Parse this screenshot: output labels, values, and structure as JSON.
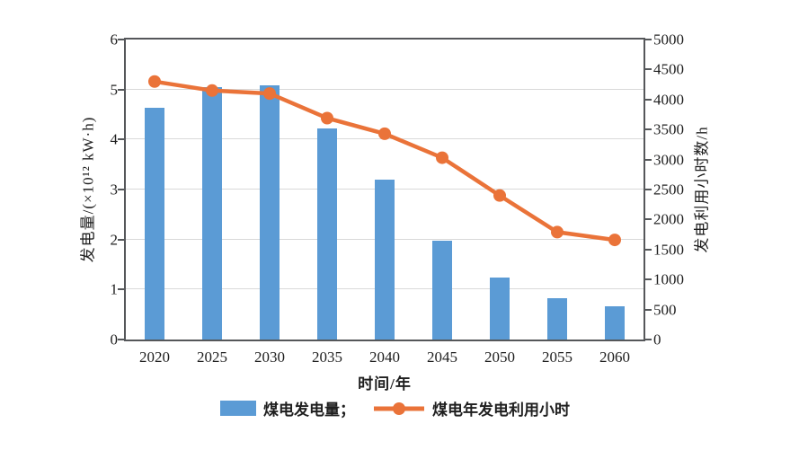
{
  "chart_data": {
    "type": "bar+line combo",
    "categories": [
      "2020",
      "2025",
      "2030",
      "2035",
      "2040",
      "2045",
      "2050",
      "2055",
      "2060"
    ],
    "series": [
      {
        "name": "煤电发电量",
        "type": "bar",
        "axis": "left",
        "color": "#5B9BD5",
        "values": [
          4.63,
          5.05,
          5.08,
          4.23,
          3.19,
          1.98,
          1.24,
          0.83,
          0.66
        ]
      },
      {
        "name": "煤电年发电利用小时",
        "type": "line",
        "axis": "right",
        "color": "#EA7339",
        "marker": "circle",
        "values": [
          4300,
          4150,
          4100,
          3690,
          3430,
          3030,
          2400,
          1790,
          1660
        ]
      }
    ],
    "left_axis": {
      "label": "发电量/(×10¹² kW·h)",
      "min": 0,
      "max": 6,
      "step": 1,
      "ticks": [
        "0",
        "1",
        "2",
        "3",
        "4",
        "5",
        "6"
      ]
    },
    "right_axis": {
      "label": "发电利用小时数/h",
      "min": 0,
      "max": 5000,
      "step": 500,
      "ticks": [
        "0",
        "500",
        "1000",
        "1500",
        "2000",
        "2500",
        "3000",
        "3500",
        "4000",
        "4500",
        "5000"
      ]
    },
    "xlabel": "时间/年",
    "grid": "horizontal gridlines at left-axis integers",
    "legend_position": "bottom"
  },
  "legend": {
    "bar_label": "煤电发电量；",
    "line_label": "煤电年发电利用小时"
  },
  "style": {
    "axis_color": "#55575a",
    "grid_color": "#d9d9d9",
    "background": "#ffffff"
  }
}
